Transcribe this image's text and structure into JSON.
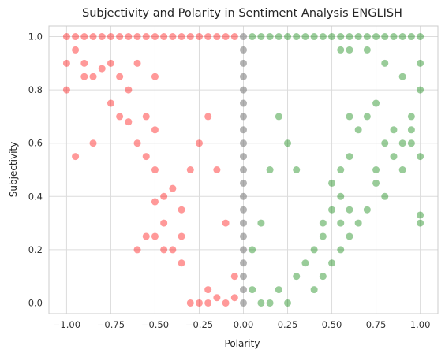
{
  "chart_data": {
    "type": "scatter",
    "title": "Subjectivity and Polarity in Sentiment Analysis ENGLISH",
    "xlabel": "Polarity",
    "ylabel": "Subjectivity",
    "xlim": [
      -1.1,
      1.1
    ],
    "ylim": [
      -0.04,
      1.04
    ],
    "xticks": [
      -1.0,
      -0.75,
      -0.5,
      -0.25,
      0.0,
      0.25,
      0.5,
      0.75,
      1.0
    ],
    "xtick_labels": [
      "−1.00",
      "−0.75",
      "−0.50",
      "−0.25",
      "0.00",
      "0.25",
      "0.50",
      "0.75",
      "1.00"
    ],
    "yticks": [
      0.0,
      0.2,
      0.4,
      0.6,
      0.8,
      1.0
    ],
    "ytick_labels": [
      "0.0",
      "0.2",
      "0.4",
      "0.6",
      "0.8",
      "1.0"
    ],
    "grid": true,
    "legend": "none",
    "series": [
      {
        "color": "#ff0000",
        "points": [
          [
            -1.0,
            1.0
          ],
          [
            -0.95,
            1.0
          ],
          [
            -0.9,
            1.0
          ],
          [
            -0.85,
            1.0
          ],
          [
            -0.8,
            1.0
          ],
          [
            -0.75,
            1.0
          ],
          [
            -0.7,
            1.0
          ],
          [
            -0.65,
            1.0
          ],
          [
            -0.6,
            1.0
          ],
          [
            -0.55,
            1.0
          ],
          [
            -0.5,
            1.0
          ],
          [
            -0.45,
            1.0
          ],
          [
            -0.4,
            1.0
          ],
          [
            -0.35,
            1.0
          ],
          [
            -0.3,
            1.0
          ],
          [
            -0.25,
            1.0
          ],
          [
            -0.2,
            1.0
          ],
          [
            -0.15,
            1.0
          ],
          [
            -0.1,
            1.0
          ],
          [
            -0.05,
            1.0
          ],
          [
            -1.0,
            0.9
          ],
          [
            -1.0,
            0.8
          ],
          [
            -0.95,
            0.95
          ],
          [
            -0.9,
            0.85
          ],
          [
            -0.9,
            0.9
          ],
          [
            -0.85,
            0.6
          ],
          [
            -0.85,
            0.85
          ],
          [
            -0.8,
            0.88
          ],
          [
            -0.75,
            0.9
          ],
          [
            -0.7,
            0.85
          ],
          [
            -0.7,
            0.7
          ],
          [
            -0.95,
            0.55
          ],
          [
            -0.75,
            0.75
          ],
          [
            -0.65,
            0.8
          ],
          [
            -0.6,
            0.9
          ],
          [
            -0.6,
            0.6
          ],
          [
            -0.65,
            0.68
          ],
          [
            -0.55,
            0.7
          ],
          [
            -0.55,
            0.55
          ],
          [
            -0.5,
            0.85
          ],
          [
            -0.5,
            0.65
          ],
          [
            -0.5,
            0.5
          ],
          [
            -0.45,
            0.4
          ],
          [
            -0.45,
            0.3
          ],
          [
            -0.4,
            0.2
          ],
          [
            -0.35,
            0.25
          ],
          [
            -0.35,
            0.15
          ],
          [
            -0.3,
            0.0
          ],
          [
            -0.25,
            0.0
          ],
          [
            -0.2,
            0.05
          ],
          [
            -0.2,
            0.0
          ],
          [
            -0.15,
            0.02
          ],
          [
            -0.4,
            0.43
          ],
          [
            -0.5,
            0.38
          ],
          [
            -0.5,
            0.25
          ],
          [
            -0.55,
            0.25
          ],
          [
            -0.6,
            0.2
          ],
          [
            -0.45,
            0.2
          ],
          [
            -0.35,
            0.35
          ],
          [
            -0.1,
            0.0
          ],
          [
            -0.05,
            0.02
          ],
          [
            -0.3,
            0.5
          ],
          [
            -0.25,
            0.6
          ],
          [
            -0.2,
            0.7
          ],
          [
            -0.15,
            0.5
          ],
          [
            -0.1,
            0.3
          ],
          [
            -0.05,
            0.1
          ]
        ]
      },
      {
        "color": "#008000",
        "points": [
          [
            0.05,
            1.0
          ],
          [
            0.1,
            1.0
          ],
          [
            0.15,
            1.0
          ],
          [
            0.2,
            1.0
          ],
          [
            0.25,
            1.0
          ],
          [
            0.3,
            1.0
          ],
          [
            0.35,
            1.0
          ],
          [
            0.4,
            1.0
          ],
          [
            0.45,
            1.0
          ],
          [
            0.5,
            1.0
          ],
          [
            0.55,
            1.0
          ],
          [
            0.6,
            1.0
          ],
          [
            0.65,
            1.0
          ],
          [
            0.7,
            1.0
          ],
          [
            0.75,
            1.0
          ],
          [
            0.8,
            1.0
          ],
          [
            0.85,
            1.0
          ],
          [
            0.9,
            1.0
          ],
          [
            0.95,
            1.0
          ],
          [
            1.0,
            1.0
          ],
          [
            0.55,
            0.95
          ],
          [
            0.6,
            0.95
          ],
          [
            0.7,
            0.95
          ],
          [
            0.8,
            0.9
          ],
          [
            0.9,
            0.85
          ],
          [
            1.0,
            0.9
          ],
          [
            1.0,
            0.8
          ],
          [
            0.95,
            0.7
          ],
          [
            0.95,
            0.65
          ],
          [
            0.9,
            0.6
          ],
          [
            0.85,
            0.65
          ],
          [
            0.8,
            0.6
          ],
          [
            0.75,
            0.75
          ],
          [
            0.7,
            0.7
          ],
          [
            0.65,
            0.65
          ],
          [
            0.6,
            0.7
          ],
          [
            0.6,
            0.55
          ],
          [
            0.55,
            0.5
          ],
          [
            0.55,
            0.4
          ],
          [
            0.5,
            0.45
          ],
          [
            0.5,
            0.35
          ],
          [
            0.45,
            0.3
          ],
          [
            0.45,
            0.25
          ],
          [
            0.4,
            0.2
          ],
          [
            0.35,
            0.15
          ],
          [
            0.3,
            0.1
          ],
          [
            0.25,
            0.0
          ],
          [
            0.2,
            0.05
          ],
          [
            0.15,
            0.0
          ],
          [
            0.1,
            0.0
          ],
          [
            0.05,
            0.05
          ],
          [
            0.8,
            0.4
          ],
          [
            0.7,
            0.35
          ],
          [
            0.65,
            0.3
          ],
          [
            0.6,
            0.35
          ],
          [
            0.6,
            0.25
          ],
          [
            0.55,
            0.3
          ],
          [
            0.55,
            0.2
          ],
          [
            0.5,
            0.15
          ],
          [
            0.45,
            0.1
          ],
          [
            0.4,
            0.05
          ],
          [
            1.0,
            0.3
          ],
          [
            1.0,
            0.33
          ],
          [
            0.9,
            0.5
          ],
          [
            0.85,
            0.55
          ],
          [
            0.75,
            0.5
          ],
          [
            0.75,
            0.45
          ],
          [
            0.95,
            0.6
          ],
          [
            1.0,
            0.55
          ],
          [
            0.3,
            0.5
          ],
          [
            0.25,
            0.6
          ],
          [
            0.2,
            0.7
          ],
          [
            0.15,
            0.5
          ],
          [
            0.1,
            0.3
          ],
          [
            0.05,
            0.2
          ]
        ]
      },
      {
        "color": "#808080",
        "points": [
          [
            0.0,
            1.0
          ],
          [
            0.0,
            0.95
          ],
          [
            0.0,
            0.9
          ],
          [
            0.0,
            0.85
          ],
          [
            0.0,
            0.8
          ],
          [
            0.0,
            0.75
          ],
          [
            0.0,
            0.7
          ],
          [
            0.0,
            0.65
          ],
          [
            0.0,
            0.6
          ],
          [
            0.0,
            0.55
          ],
          [
            0.0,
            0.5
          ],
          [
            0.0,
            0.45
          ],
          [
            0.0,
            0.4
          ],
          [
            0.0,
            0.35
          ],
          [
            0.0,
            0.3
          ],
          [
            0.0,
            0.25
          ],
          [
            0.0,
            0.2
          ],
          [
            0.0,
            0.15
          ],
          [
            0.0,
            0.1
          ],
          [
            0.0,
            0.05
          ],
          [
            0.0,
            0.0
          ]
        ]
      }
    ]
  }
}
